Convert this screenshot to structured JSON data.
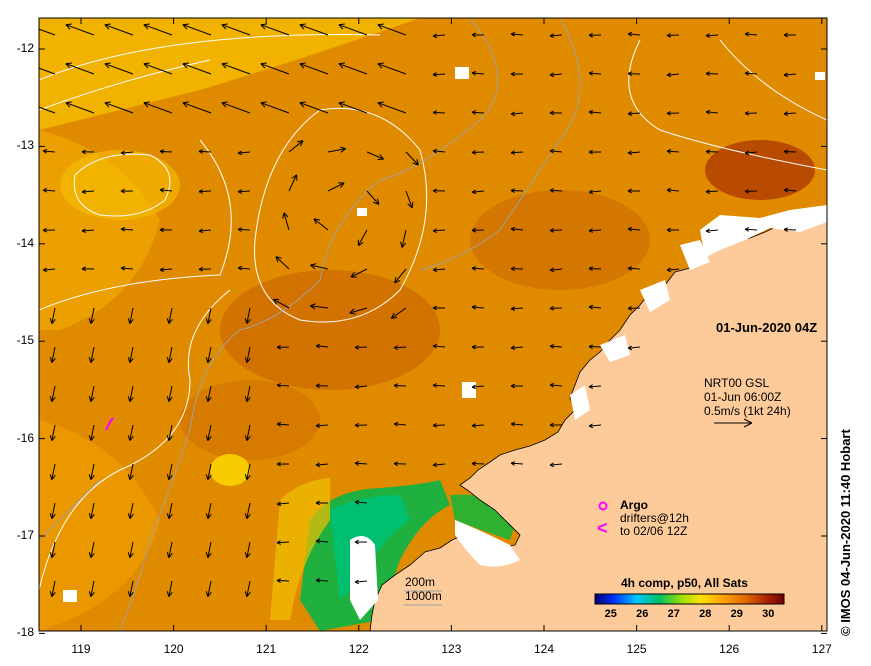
{
  "map": {
    "date_label": "01-Jun-2020 04Z",
    "product_label": "4h comp, p50, All Sats",
    "credit": "© IMOS 04-Jun-2020 11:40 Hobart",
    "currents": {
      "line1": "NRT00 GSL",
      "line2": "01-Jun 06:00Z",
      "line3": "0.5m/s (1kt 24h)"
    },
    "argo": {
      "label": "Argo",
      "drifters": "drifters@12h",
      "drifters_to": "to 02/06 12Z",
      "argo_color": "#ff00ff",
      "drifter_color": "#ff00ff"
    },
    "isobaths": {
      "a": "200m",
      "b": "1000m"
    },
    "x_ticks": [
      "119",
      "120",
      "121",
      "122",
      "123",
      "124",
      "125",
      "126",
      "127"
    ],
    "y_ticks": [
      "-12",
      "-13",
      "-14",
      "-15",
      "-16",
      "-17",
      "-18"
    ],
    "colorbar": {
      "ticks": [
        "25",
        "26",
        "27",
        "28",
        "29",
        "30"
      ],
      "range": [
        24.5,
        30.5
      ],
      "colors": [
        "#000070",
        "#0040ff",
        "#00d0ff",
        "#00cc44",
        "#b0e000",
        "#ffe000",
        "#ffa500",
        "#e07000",
        "#b03000",
        "#700000"
      ]
    },
    "colors": {
      "land": "#fdcb9a",
      "coast": "#000000",
      "sea_warm": "#e08a00",
      "cloud": "#ffffff"
    }
  }
}
